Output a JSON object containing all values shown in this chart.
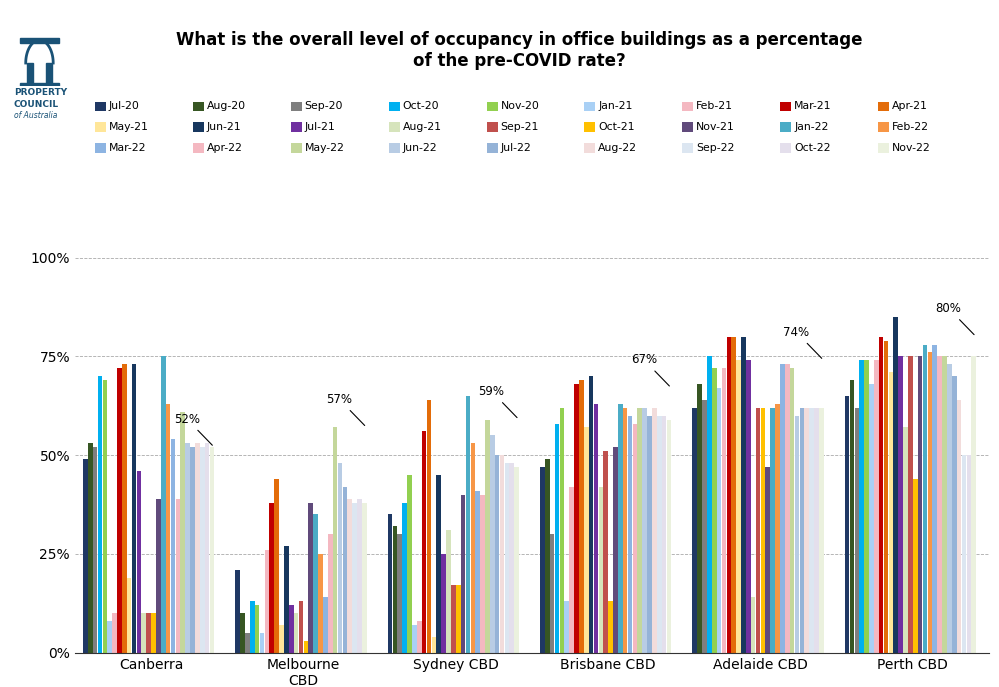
{
  "title": "What is the overall level of occupancy in office buildings as a percentage\nof the pre-COVID rate?",
  "cities": [
    "Canberra",
    "Melbourne\nCBD",
    "Sydney CBD",
    "Brisbane CBD",
    "Adelaide CBD",
    "Perth CBD"
  ],
  "series": [
    {
      "label": "Jul-20",
      "color": "#1f3864"
    },
    {
      "label": "Aug-20",
      "color": "#375623"
    },
    {
      "label": "Sep-20",
      "color": "#7f7f7f"
    },
    {
      "label": "Oct-20",
      "color": "#00b0f0"
    },
    {
      "label": "Nov-20",
      "color": "#92d050"
    },
    {
      "label": "Jan-21",
      "color": "#a9d0f5"
    },
    {
      "label": "Feb-21",
      "color": "#f4b8c1"
    },
    {
      "label": "Mar-21",
      "color": "#c00000"
    },
    {
      "label": "Apr-21",
      "color": "#e36c09"
    },
    {
      "label": "May-21",
      "color": "#ffe699"
    },
    {
      "label": "Jun-21",
      "color": "#17375e"
    },
    {
      "label": "Jul-21",
      "color": "#7030a0"
    },
    {
      "label": "Aug-21",
      "color": "#d6e4bc"
    },
    {
      "label": "Sep-21",
      "color": "#c0504d"
    },
    {
      "label": "Oct-21",
      "color": "#ffc000"
    },
    {
      "label": "Nov-21",
      "color": "#604a7b"
    },
    {
      "label": "Jan-22",
      "color": "#4bacc6"
    },
    {
      "label": "Feb-22",
      "color": "#f79646"
    },
    {
      "label": "Mar-22",
      "color": "#8db4e2"
    },
    {
      "label": "Apr-22",
      "color": "#f4b8c1"
    },
    {
      "label": "May-22",
      "color": "#c4d79b"
    },
    {
      "label": "Jun-22",
      "color": "#b8cce4"
    },
    {
      "label": "Jul-22",
      "color": "#95b3d7"
    },
    {
      "label": "Aug-22",
      "color": "#f2dcdb"
    },
    {
      "label": "Sep-22",
      "color": "#dce6f1"
    },
    {
      "label": "Oct-22",
      "color": "#e4dfec"
    },
    {
      "label": "Nov-22",
      "color": "#ebf1de"
    }
  ],
  "data": {
    "Canberra": [
      49,
      53,
      52,
      70,
      69,
      8,
      10,
      72,
      73,
      19,
      73,
      46,
      10,
      10,
      10,
      39,
      75,
      63,
      54,
      39,
      61,
      53,
      52,
      53,
      52,
      53,
      52
    ],
    "Melbourne\nCBD": [
      21,
      10,
      5,
      13,
      12,
      5,
      26,
      38,
      44,
      7,
      27,
      12,
      10,
      13,
      3,
      38,
      35,
      25,
      14,
      30,
      57,
      48,
      42,
      39,
      38,
      39,
      38
    ],
    "Sydney CBD": [
      35,
      32,
      30,
      38,
      45,
      7,
      8,
      56,
      64,
      4,
      45,
      25,
      31,
      17,
      17,
      40,
      65,
      53,
      41,
      40,
      59,
      55,
      50,
      50,
      48,
      48,
      47
    ],
    "Brisbane CBD": [
      47,
      49,
      30,
      58,
      62,
      13,
      42,
      68,
      69,
      57,
      70,
      63,
      42,
      51,
      13,
      52,
      63,
      62,
      60,
      58,
      62,
      62,
      60,
      62,
      60,
      60,
      59
    ],
    "Adelaide CBD": [
      62,
      68,
      64,
      75,
      72,
      67,
      72,
      80,
      80,
      74,
      80,
      74,
      14,
      62,
      62,
      47,
      62,
      63,
      73,
      73,
      72,
      60,
      62,
      62,
      62,
      62,
      62
    ],
    "Perth CBD": [
      65,
      69,
      62,
      74,
      74,
      68,
      74,
      80,
      79,
      71,
      85,
      75,
      57,
      75,
      44,
      75,
      78,
      76,
      78,
      75,
      75,
      73,
      70,
      64,
      50,
      50,
      75
    ]
  },
  "annot_vals": {
    "Canberra": 0.52,
    "Melbourne\nCBD": 0.57,
    "Sydney CBD": 0.59,
    "Brisbane CBD": 0.67,
    "Adelaide CBD": 0.74,
    "Perth CBD": 0.8
  },
  "annot_labels": {
    "Canberra": "52%",
    "Melbourne\nCBD": "57%",
    "Sydney CBD": "59%",
    "Brisbane CBD": "67%",
    "Adelaide CBD": "74%",
    "Perth CBD": "80%"
  },
  "background_color": "#ffffff"
}
